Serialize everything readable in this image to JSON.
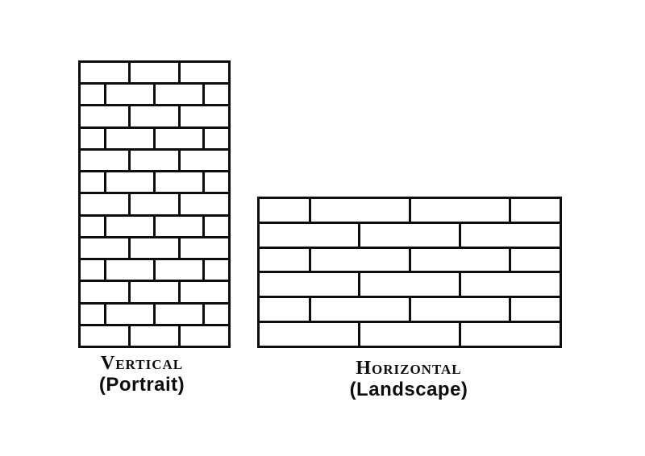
{
  "page": {
    "background": "#ffffff",
    "line_color": "#0d0d0d",
    "brick_fill": "#ffffff"
  },
  "diagram": {
    "type": "brick-pattern-orientation-comparison",
    "walls": [
      {
        "id": "portrait-wall",
        "orientation": "vertical",
        "label_primary": "Vertical",
        "label_secondary": "(Portrait)",
        "course_count": 13,
        "rows": [
          [
            2,
            2,
            2
          ],
          [
            1,
            2,
            2,
            1
          ],
          [
            2,
            2,
            2
          ],
          [
            1,
            2,
            2,
            1
          ],
          [
            2,
            2,
            2
          ],
          [
            1,
            2,
            2,
            1
          ],
          [
            2,
            2,
            2
          ],
          [
            1,
            2,
            2,
            1
          ],
          [
            2,
            2,
            2
          ],
          [
            1,
            2,
            2,
            1
          ],
          [
            2,
            2,
            2
          ],
          [
            1,
            2,
            2,
            1
          ],
          [
            2,
            2,
            2
          ]
        ]
      },
      {
        "id": "landscape-wall",
        "orientation": "horizontal",
        "label_primary": "Horizontal",
        "label_secondary": "(Landscape)",
        "course_count": 6,
        "rows": [
          [
            1,
            2,
            2,
            1
          ],
          [
            2,
            2,
            2
          ],
          [
            1,
            2,
            2,
            1
          ],
          [
            2,
            2,
            2
          ],
          [
            1,
            2,
            2,
            1
          ],
          [
            2,
            2,
            2
          ]
        ]
      }
    ]
  }
}
